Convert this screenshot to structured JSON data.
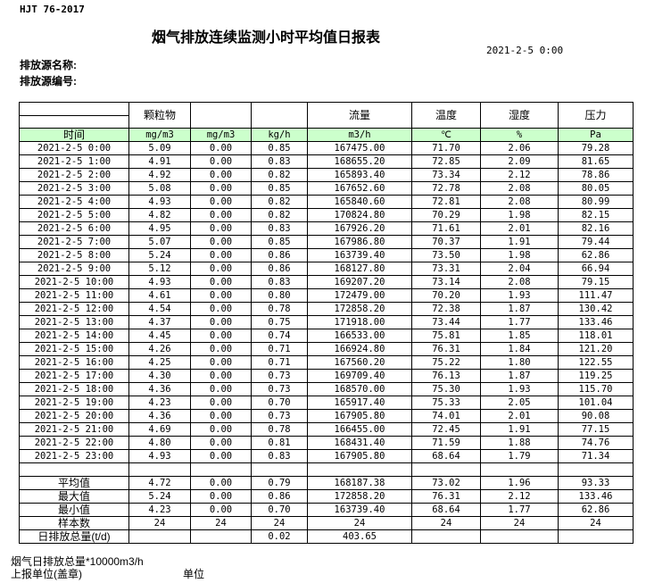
{
  "standard": "HJT  76-2017",
  "title": "烟气排放连续监测小时平均值日报表",
  "report_date": "2021-2-5 0:00",
  "source_name_label": "排放源名称:",
  "source_no_label": "排放源编号:",
  "headers": [
    "",
    "颗粒物",
    "",
    "",
    "流量",
    "温度",
    "湿度",
    "压力"
  ],
  "units": [
    "时间",
    "mg/m3",
    "mg/m3",
    "kg/h",
    "m3/h",
    "℃",
    "%",
    "Pa"
  ],
  "rows": [
    [
      "2021-2-5 0:00",
      "5.09",
      "0.00",
      "0.85",
      "167475.00",
      "71.70",
      "2.06",
      "79.28"
    ],
    [
      "2021-2-5 1:00",
      "4.91",
      "0.00",
      "0.83",
      "168655.20",
      "72.85",
      "2.09",
      "81.65"
    ],
    [
      "2021-2-5 2:00",
      "4.92",
      "0.00",
      "0.82",
      "165893.40",
      "73.34",
      "2.12",
      "78.86"
    ],
    [
      "2021-2-5 3:00",
      "5.08",
      "0.00",
      "0.85",
      "167652.60",
      "72.78",
      "2.08",
      "80.05"
    ],
    [
      "2021-2-5 4:00",
      "4.93",
      "0.00",
      "0.82",
      "165840.60",
      "72.81",
      "2.08",
      "80.99"
    ],
    [
      "2021-2-5 5:00",
      "4.82",
      "0.00",
      "0.82",
      "170824.80",
      "70.29",
      "1.98",
      "82.15"
    ],
    [
      "2021-2-5 6:00",
      "4.95",
      "0.00",
      "0.83",
      "167926.20",
      "71.61",
      "2.01",
      "82.16"
    ],
    [
      "2021-2-5 7:00",
      "5.07",
      "0.00",
      "0.85",
      "167986.80",
      "70.37",
      "1.91",
      "79.44"
    ],
    [
      "2021-2-5 8:00",
      "5.24",
      "0.00",
      "0.86",
      "163739.40",
      "73.50",
      "1.98",
      "62.86"
    ],
    [
      "2021-2-5 9:00",
      "5.12",
      "0.00",
      "0.86",
      "168127.80",
      "73.31",
      "2.04",
      "66.94"
    ],
    [
      "2021-2-5 10:00",
      "4.93",
      "0.00",
      "0.83",
      "169207.20",
      "73.14",
      "2.08",
      "79.15"
    ],
    [
      "2021-2-5 11:00",
      "4.61",
      "0.00",
      "0.80",
      "172479.00",
      "70.20",
      "1.93",
      "111.47"
    ],
    [
      "2021-2-5 12:00",
      "4.54",
      "0.00",
      "0.78",
      "172858.20",
      "72.38",
      "1.87",
      "130.42"
    ],
    [
      "2021-2-5 13:00",
      "4.37",
      "0.00",
      "0.75",
      "171918.00",
      "73.44",
      "1.77",
      "133.46"
    ],
    [
      "2021-2-5 14:00",
      "4.45",
      "0.00",
      "0.74",
      "166533.00",
      "75.81",
      "1.85",
      "118.01"
    ],
    [
      "2021-2-5 15:00",
      "4.26",
      "0.00",
      "0.71",
      "166924.80",
      "76.31",
      "1.84",
      "121.20"
    ],
    [
      "2021-2-5 16:00",
      "4.25",
      "0.00",
      "0.71",
      "167560.20",
      "75.22",
      "1.80",
      "122.55"
    ],
    [
      "2021-2-5 17:00",
      "4.30",
      "0.00",
      "0.73",
      "169709.40",
      "76.13",
      "1.87",
      "119.25"
    ],
    [
      "2021-2-5 18:00",
      "4.36",
      "0.00",
      "0.73",
      "168570.00",
      "75.30",
      "1.93",
      "115.70"
    ],
    [
      "2021-2-5 19:00",
      "4.23",
      "0.00",
      "0.70",
      "165917.40",
      "75.33",
      "2.05",
      "101.04"
    ],
    [
      "2021-2-5 20:00",
      "4.36",
      "0.00",
      "0.73",
      "167905.80",
      "74.01",
      "2.01",
      "90.08"
    ],
    [
      "2021-2-5 21:00",
      "4.69",
      "0.00",
      "0.78",
      "166455.00",
      "72.45",
      "1.91",
      "77.15"
    ],
    [
      "2021-2-5 22:00",
      "4.80",
      "0.00",
      "0.81",
      "168431.40",
      "71.59",
      "1.88",
      "74.76"
    ],
    [
      "2021-2-5 23:00",
      "4.93",
      "0.00",
      "0.83",
      "167905.80",
      "68.64",
      "1.79",
      "71.34"
    ]
  ],
  "stats": [
    [
      "平均值",
      "4.72",
      "0.00",
      "0.79",
      "168187.38",
      "73.02",
      "1.96",
      "93.33"
    ],
    [
      "最大值",
      "5.24",
      "0.00",
      "0.86",
      "172858.20",
      "76.31",
      "2.12",
      "133.46"
    ],
    [
      "最小值",
      "4.23",
      "0.00",
      "0.70",
      "163739.40",
      "68.64",
      "1.77",
      "62.86"
    ],
    [
      "样本数",
      "24",
      "24",
      "24",
      "24",
      "24",
      "24",
      "24"
    ],
    [
      "日排放总量(t/d)",
      "",
      "",
      "0.02",
      "403.65",
      "",
      "",
      ""
    ]
  ],
  "footer": {
    "flue_total": "烟气日排放总量*10000m3/h",
    "reporting_unit": "上报单位(盖章)",
    "unit": "单位"
  },
  "colors": {
    "unit_row_bg": "#ccffcc"
  }
}
